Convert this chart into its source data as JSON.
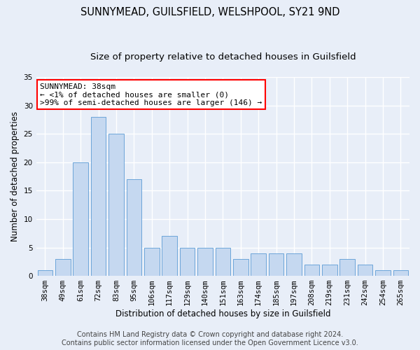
{
  "title_line1": "SUNNYMEAD, GUILSFIELD, WELSHPOOL, SY21 9ND",
  "title_line2": "Size of property relative to detached houses in Guilsfield",
  "xlabel": "Distribution of detached houses by size in Guilsfield",
  "ylabel": "Number of detached properties",
  "categories": [
    "38sqm",
    "49sqm",
    "61sqm",
    "72sqm",
    "83sqm",
    "95sqm",
    "106sqm",
    "117sqm",
    "129sqm",
    "140sqm",
    "151sqm",
    "163sqm",
    "174sqm",
    "185sqm",
    "197sqm",
    "208sqm",
    "219sqm",
    "231sqm",
    "242sqm",
    "254sqm",
    "265sqm"
  ],
  "values": [
    1,
    3,
    20,
    28,
    25,
    17,
    5,
    7,
    5,
    5,
    5,
    3,
    4,
    4,
    4,
    2,
    2,
    3,
    2,
    1,
    1
  ],
  "bar_color": "#c5d8f0",
  "bar_edge_color": "#5b9bd5",
  "ylim": [
    0,
    35
  ],
  "yticks": [
    0,
    5,
    10,
    15,
    20,
    25,
    30,
    35
  ],
  "annotation_line1": "SUNNYMEAD: 38sqm",
  "annotation_line2": "← <1% of detached houses are smaller (0)",
  "annotation_line3": ">99% of semi-detached houses are larger (146) →",
  "annotation_box_color": "#ffffff",
  "annotation_box_edge_color": "#ff0000",
  "footer_line1": "Contains HM Land Registry data © Crown copyright and database right 2024.",
  "footer_line2": "Contains public sector information licensed under the Open Government Licence v3.0.",
  "background_color": "#e8eef8",
  "grid_color": "#ffffff",
  "title_fontsize": 10.5,
  "subtitle_fontsize": 9.5,
  "axis_label_fontsize": 8.5,
  "tick_fontsize": 7.5,
  "annotation_fontsize": 8,
  "footer_fontsize": 7
}
